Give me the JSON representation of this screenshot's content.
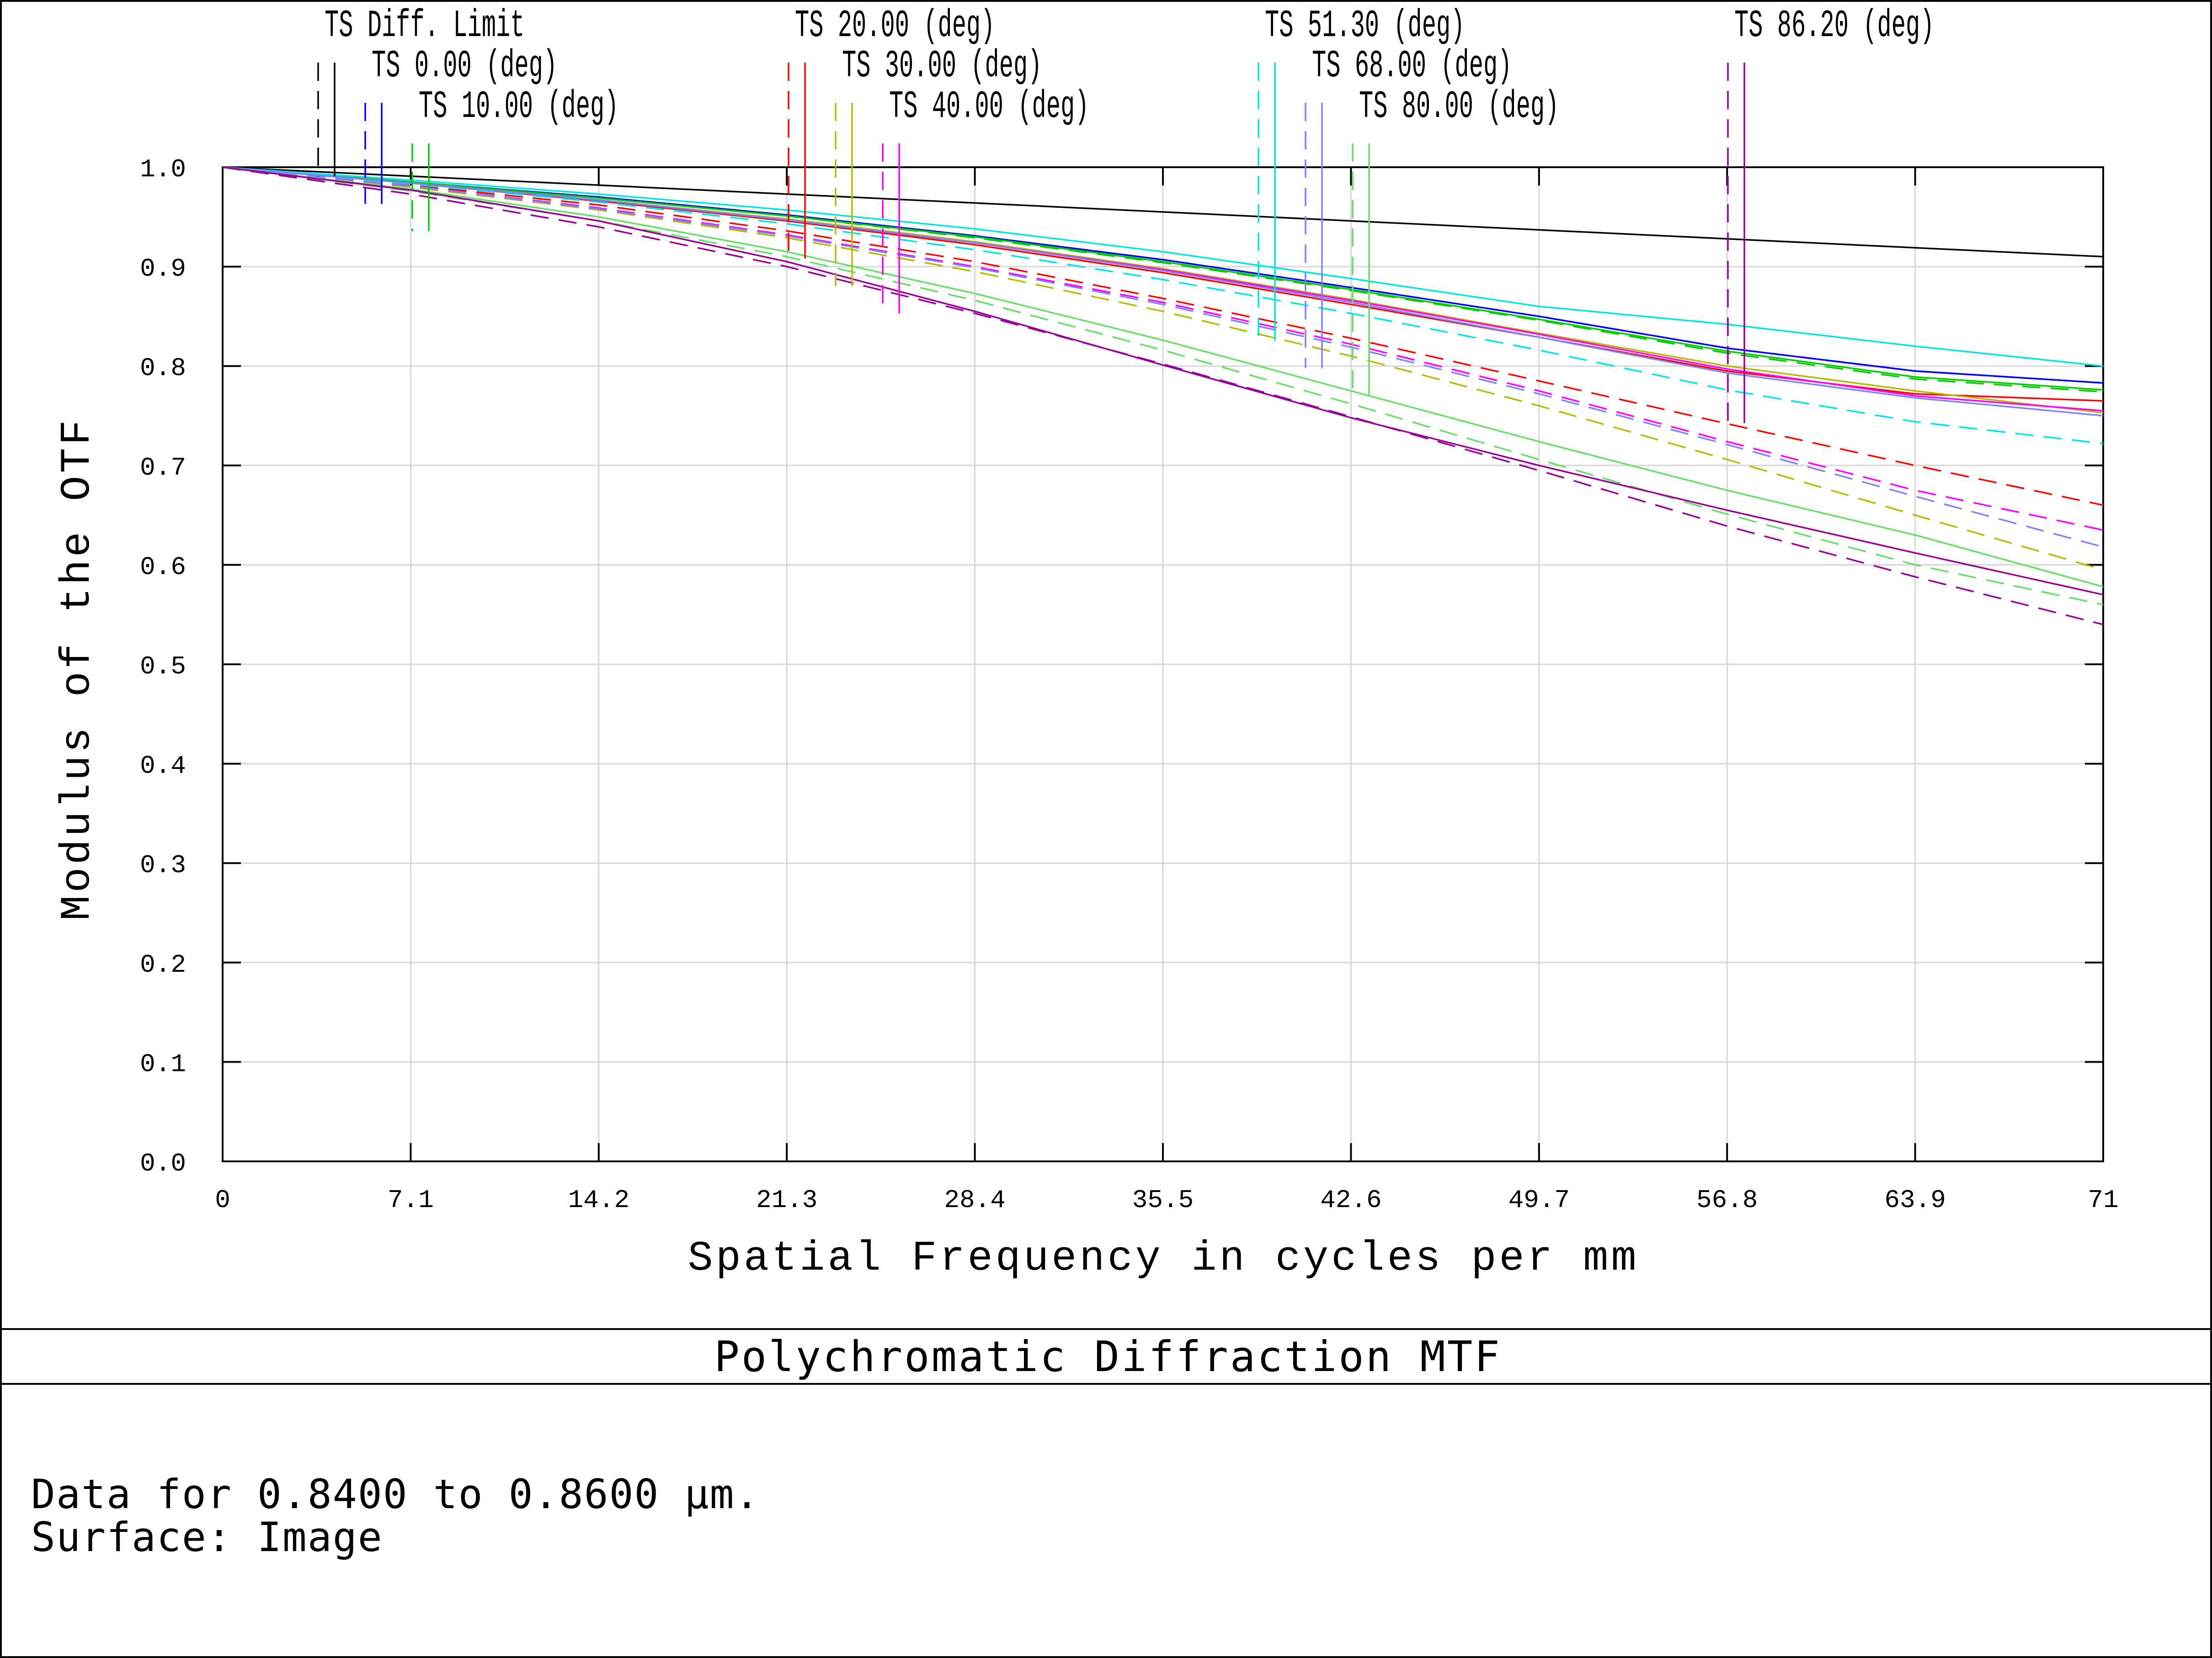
{
  "info": {
    "title": "Polychromatic Diffraction MTF",
    "line1": "Data for 0.8400 to 0.8600 µm.",
    "line2": "Surface: Image"
  },
  "chart_data": {
    "type": "line",
    "title": "Polychromatic Diffraction MTF",
    "xlabel": "Spatial Frequency in cycles per mm",
    "ylabel": "Modulus of the OTF",
    "xlim": [
      0,
      71
    ],
    "ylim": [
      0,
      1
    ],
    "grid": true,
    "x_tick_labels": [
      "0",
      "7.1",
      "14.2",
      "21.3",
      "28.4",
      "35.5",
      "42.6",
      "49.7",
      "56.8",
      "63.9",
      "71"
    ],
    "y_tick_labels": [
      "0.0",
      "0.1",
      "0.2",
      "0.3",
      "0.4",
      "0.5",
      "0.6",
      "0.7",
      "0.8",
      "0.9",
      "1.0"
    ],
    "legend_placement": "top",
    "legend": [
      {
        "label": "TS Diff. Limit",
        "color": "#000000"
      },
      {
        "label": "TS 0.00 (deg)",
        "color": "#0000ff"
      },
      {
        "label": "TS 10.00 (deg)",
        "color": "#00cc00"
      },
      {
        "label": "TS 20.00 (deg)",
        "color": "#ff0000"
      },
      {
        "label": "TS 30.00 (deg)",
        "color": "#b8b800"
      },
      {
        "label": "TS 40.00 (deg)",
        "color": "#ff00ff"
      },
      {
        "label": "TS 51.30 (deg)",
        "color": "#00e5e5"
      },
      {
        "label": "TS 68.00 (deg)",
        "color": "#8080ff"
      },
      {
        "label": "TS 80.00 (deg)",
        "color": "#66dd66"
      },
      {
        "label": "TS 86.20 (deg)",
        "color": "#990099"
      }
    ],
    "x": [
      0,
      7.1,
      14.2,
      21.3,
      28.4,
      35.5,
      42.6,
      49.7,
      56.8,
      63.9,
      71
    ],
    "series": [
      {
        "name": "TS Diff. Limit",
        "line": "solid",
        "values": [
          1.0,
          0.991,
          0.982,
          0.973,
          0.964,
          0.955,
          0.946,
          0.937,
          0.928,
          0.919,
          0.91
        ]
      },
      {
        "name": "TS 0.00 (deg)",
        "line": "tangential",
        "values": [
          1.0,
          0.985,
          0.97,
          0.952,
          0.931,
          0.907,
          0.879,
          0.85,
          0.818,
          0.795,
          0.783
        ]
      },
      {
        "name": "TS 0.00 (deg)",
        "line": "sagittal",
        "values": [
          1.0,
          0.985,
          0.97,
          0.952,
          0.931,
          0.907,
          0.879,
          0.85,
          0.818,
          0.795,
          0.783
        ]
      },
      {
        "name": "TS 10.00 (deg)",
        "line": "tangential",
        "values": [
          1.0,
          0.985,
          0.969,
          0.951,
          0.93,
          0.905,
          0.877,
          0.847,
          0.815,
          0.789,
          0.776
        ]
      },
      {
        "name": "TS 10.00 (deg)",
        "line": "sagittal",
        "values": [
          1.0,
          0.985,
          0.969,
          0.951,
          0.929,
          0.904,
          0.876,
          0.846,
          0.813,
          0.787,
          0.774
        ]
      },
      {
        "name": "TS 20.00 (deg)",
        "line": "tangential",
        "values": [
          1.0,
          0.984,
          0.966,
          0.946,
          0.922,
          0.894,
          0.862,
          0.829,
          0.795,
          0.772,
          0.765
        ]
      },
      {
        "name": "TS 20.00 (deg)",
        "line": "sagittal",
        "values": [
          1.0,
          0.982,
          0.962,
          0.936,
          0.905,
          0.868,
          0.828,
          0.785,
          0.742,
          0.7,
          0.66
        ]
      },
      {
        "name": "TS 30.00 (deg)",
        "line": "tangential",
        "values": [
          1.0,
          0.984,
          0.967,
          0.948,
          0.925,
          0.898,
          0.867,
          0.833,
          0.8,
          0.775,
          0.753
        ]
      },
      {
        "name": "TS 30.00 (deg)",
        "line": "sagittal",
        "values": [
          1.0,
          0.98,
          0.957,
          0.929,
          0.895,
          0.855,
          0.81,
          0.76,
          0.706,
          0.65,
          0.595
        ]
      },
      {
        "name": "TS 40.00 (deg)",
        "line": "tangential",
        "values": [
          1.0,
          0.984,
          0.967,
          0.947,
          0.924,
          0.897,
          0.866,
          0.832,
          0.797,
          0.77,
          0.755
        ]
      },
      {
        "name": "TS 40.00 (deg)",
        "line": "sagittal",
        "values": [
          1.0,
          0.981,
          0.959,
          0.932,
          0.9,
          0.864,
          0.822,
          0.775,
          0.724,
          0.675,
          0.635
        ]
      },
      {
        "name": "TS 51.30 (deg)",
        "line": "tangential",
        "values": [
          1.0,
          0.987,
          0.973,
          0.957,
          0.938,
          0.915,
          0.888,
          0.86,
          0.842,
          0.82,
          0.8
        ]
      },
      {
        "name": "TS 51.30 (deg)",
        "line": "sagittal",
        "values": [
          1.0,
          0.983,
          0.965,
          0.943,
          0.917,
          0.887,
          0.853,
          0.816,
          0.776,
          0.744,
          0.722
        ]
      },
      {
        "name": "TS 68.00 (deg)",
        "line": "tangential",
        "values": [
          1.0,
          0.984,
          0.967,
          0.947,
          0.924,
          0.896,
          0.864,
          0.829,
          0.793,
          0.768,
          0.75
        ]
      },
      {
        "name": "TS 68.00 (deg)",
        "line": "sagittal",
        "values": [
          1.0,
          0.981,
          0.958,
          0.931,
          0.899,
          0.862,
          0.819,
          0.772,
          0.721,
          0.669,
          0.618
        ]
      },
      {
        "name": "TS 80.00 (deg)",
        "line": "tangential",
        "values": [
          1.0,
          0.978,
          0.95,
          0.915,
          0.873,
          0.826,
          0.775,
          0.724,
          0.675,
          0.63,
          0.578
        ]
      },
      {
        "name": "TS 80.00 (deg)",
        "line": "sagittal",
        "values": [
          1.0,
          0.976,
          0.946,
          0.91,
          0.866,
          0.816,
          0.762,
          0.706,
          0.651,
          0.6,
          0.56
        ]
      },
      {
        "name": "TS 86.20 (deg)",
        "line": "tangential",
        "values": [
          1.0,
          0.977,
          0.946,
          0.905,
          0.855,
          0.801,
          0.748,
          0.7,
          0.655,
          0.612,
          0.57
        ]
      },
      {
        "name": "TS 86.20 (deg)",
        "line": "sagittal",
        "values": [
          1.0,
          0.973,
          0.94,
          0.9,
          0.853,
          0.802,
          0.749,
          0.695,
          0.639,
          0.588,
          0.54
        ]
      }
    ]
  }
}
